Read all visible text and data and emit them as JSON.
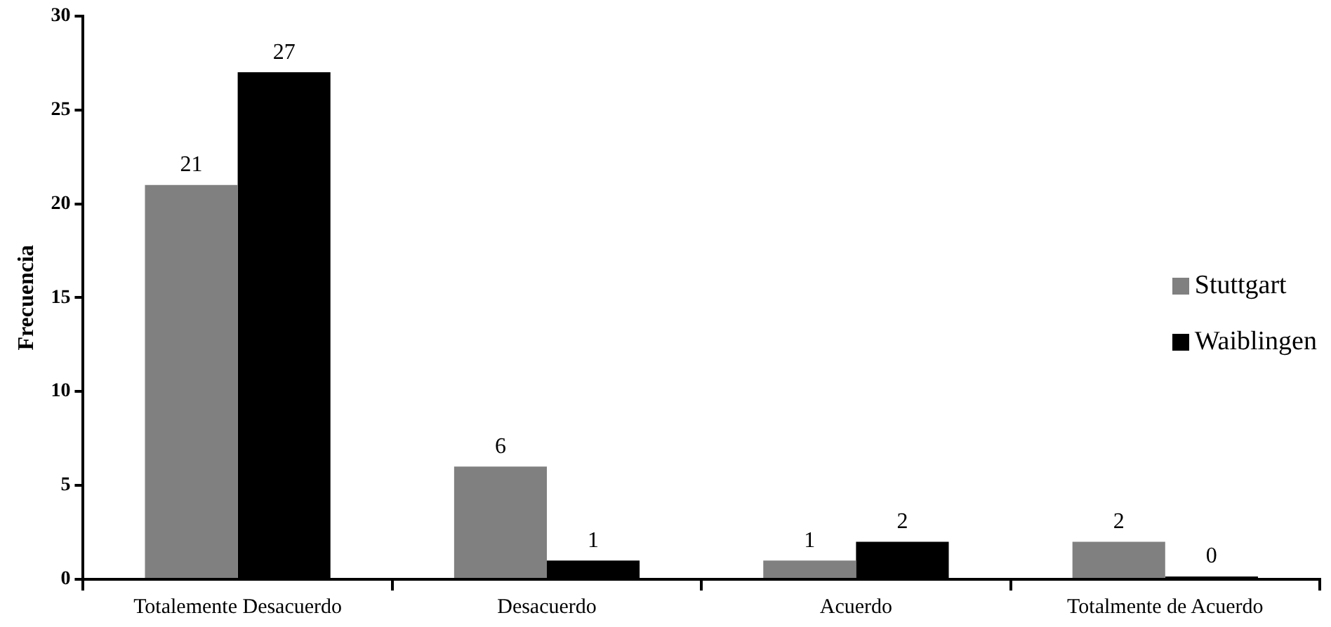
{
  "chart_data": {
    "type": "bar",
    "ylabel": "Frecuencia",
    "categories": [
      "Totalemente Desacuerdo",
      "Desacuerdo",
      "Acuerdo",
      "Totalmente de Acuerdo"
    ],
    "series": [
      {
        "name": "Stuttgart",
        "color": "#808080",
        "values": [
          21,
          6,
          1,
          2
        ]
      },
      {
        "name": "Waiblingen",
        "color": "#000000",
        "values": [
          27,
          1,
          2,
          0
        ]
      }
    ],
    "ylim": [
      0,
      30
    ],
    "yticks": [
      0,
      5,
      10,
      15,
      20,
      25,
      30
    ],
    "grid": false,
    "legend": "right",
    "data_labels": true
  }
}
